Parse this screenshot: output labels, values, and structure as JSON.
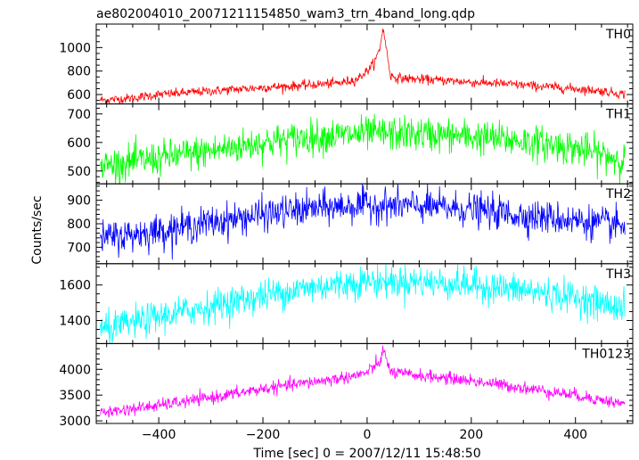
{
  "title": "ae802004010_20071211154850_wam3_trn_4band_long.qdp",
  "xlabel": "Time [sec] 0 = 2007/12/11 15:48:50",
  "ylabel": "Counts/sec",
  "chart_data": {
    "type": "line",
    "title": "ae802004010_20071211154850_wam3_trn_4band_long.qdp",
    "xlabel": "Time [sec] 0 = 2007/12/11 15:48:50",
    "ylabel": "Counts/sec",
    "xlim": [
      -520,
      510
    ],
    "xticks": [
      -400,
      -200,
      0,
      200,
      400
    ],
    "grid": false,
    "panels": [
      {
        "name": "TH0",
        "color": "#ff0000",
        "ylim": [
          520,
          1200
        ],
        "yticks": [
          600,
          800,
          1000
        ],
        "x": [
          -500,
          -450,
          -400,
          -350,
          -300,
          -250,
          -200,
          -150,
          -100,
          -50,
          -20,
          0,
          15,
          25,
          30,
          35,
          45,
          60,
          100,
          150,
          200,
          250,
          300,
          350,
          400,
          450,
          490
        ],
        "y": [
          555,
          570,
          600,
          615,
          630,
          645,
          660,
          670,
          685,
          700,
          730,
          800,
          880,
          1000,
          1170,
          1050,
          760,
          740,
          730,
          720,
          705,
          695,
          680,
          665,
          650,
          630,
          605
        ],
        "noise": 20
      },
      {
        "name": "TH1",
        "color": "#00ff00",
        "ylim": [
          455,
          735
        ],
        "yticks": [
          500,
          600,
          700
        ],
        "x": [
          -500,
          -400,
          -300,
          -200,
          -100,
          0,
          100,
          200,
          300,
          400,
          490
        ],
        "y": [
          520,
          545,
          570,
          600,
          620,
          630,
          630,
          620,
          605,
          580,
          540
        ],
        "noise": 30
      },
      {
        "name": "TH2",
        "color": "#0000ff",
        "ylim": [
          630,
          970
        ],
        "yticks": [
          700,
          800,
          900
        ],
        "x": [
          -500,
          -400,
          -300,
          -200,
          -100,
          0,
          100,
          200,
          300,
          400,
          490
        ],
        "y": [
          740,
          770,
          805,
          840,
          865,
          880,
          875,
          860,
          835,
          815,
          790
        ],
        "noise": 35
      },
      {
        "name": "TH3",
        "color": "#00ffff",
        "ylim": [
          1270,
          1720
        ],
        "yticks": [
          1400,
          1600
        ],
        "x": [
          -500,
          -400,
          -300,
          -200,
          -100,
          0,
          100,
          200,
          300,
          400,
          490
        ],
        "y": [
          1350,
          1420,
          1480,
          1540,
          1590,
          1620,
          1620,
          1600,
          1570,
          1530,
          1470
        ],
        "noise": 45
      },
      {
        "name": "TH0123",
        "color": "#ff00ff",
        "ylim": [
          2950,
          4500
        ],
        "yticks": [
          3000,
          3500,
          4000
        ],
        "x": [
          -500,
          -400,
          -300,
          -200,
          -100,
          -50,
          -20,
          0,
          15,
          25,
          30,
          35,
          45,
          60,
          100,
          200,
          300,
          400,
          490
        ],
        "y": [
          3170,
          3300,
          3450,
          3620,
          3760,
          3830,
          3880,
          3940,
          4060,
          4150,
          4370,
          4250,
          3950,
          3920,
          3880,
          3780,
          3640,
          3500,
          3330
        ],
        "noise": 60
      }
    ]
  }
}
